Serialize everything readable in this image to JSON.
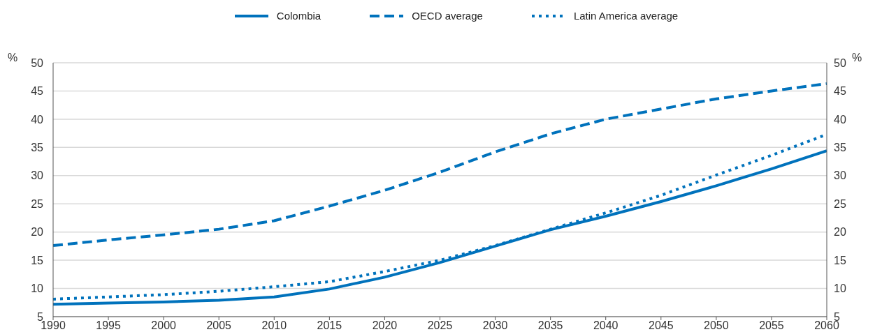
{
  "chart_data": {
    "type": "line",
    "x": [
      1990,
      1995,
      2000,
      2005,
      2010,
      2015,
      2020,
      2025,
      2030,
      2035,
      2040,
      2045,
      2050,
      2055,
      2060
    ],
    "series": [
      {
        "name": "Colombia",
        "color": "#0072bc",
        "line_style": "solid",
        "values": [
          7.2,
          7.4,
          7.6,
          7.9,
          8.5,
          9.9,
          12.0,
          14.6,
          17.5,
          20.4,
          22.8,
          25.4,
          28.2,
          31.2,
          34.4
        ]
      },
      {
        "name": "OECD average",
        "color": "#0072bc",
        "line_style": "dashed",
        "values": [
          17.6,
          18.6,
          19.5,
          20.5,
          22.0,
          24.6,
          27.4,
          30.6,
          34.2,
          37.4,
          40.0,
          41.8,
          43.6,
          45.0,
          46.3
        ]
      },
      {
        "name": "Latin America average",
        "color": "#0072bc",
        "line_style": "dotted",
        "values": [
          8.1,
          8.5,
          8.9,
          9.5,
          10.3,
          11.2,
          13.0,
          15.0,
          17.6,
          20.5,
          23.4,
          26.5,
          30.1,
          33.6,
          37.3
        ]
      }
    ],
    "xlim": [
      1990,
      2060
    ],
    "xticks": [
      1990,
      1995,
      2000,
      2005,
      2010,
      2015,
      2020,
      2025,
      2030,
      2035,
      2040,
      2045,
      2050,
      2055,
      2060
    ],
    "ylim": [
      5,
      50
    ],
    "yticks": [
      5,
      10,
      15,
      20,
      25,
      30,
      35,
      40,
      45,
      50
    ],
    "y2lim": [
      5,
      50
    ],
    "y2ticks": [
      5,
      10,
      15,
      20,
      25,
      30,
      35,
      40,
      45,
      50
    ],
    "ylabel": "%",
    "y2label": "%",
    "grid": "y",
    "legend": "top",
    "marker": "none"
  }
}
